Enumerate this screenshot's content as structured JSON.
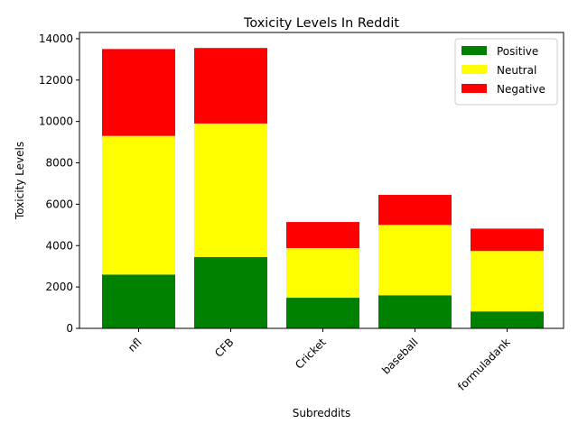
{
  "chart_data": {
    "type": "bar",
    "stacked": true,
    "title": "Toxicity Levels In Reddit",
    "xlabel": "Subreddits",
    "ylabel": "Toxicity Levels",
    "categories": [
      "nfl",
      "CFB",
      "Cricket",
      "baseball",
      "formuladank"
    ],
    "series": [
      {
        "name": "Positive",
        "color": "#008000",
        "values": [
          2600,
          3450,
          1480,
          1600,
          820
        ]
      },
      {
        "name": "Neutral",
        "color": "#ffff00",
        "values": [
          6700,
          6450,
          2400,
          3400,
          2920
        ]
      },
      {
        "name": "Negative",
        "color": "#ff0000",
        "values": [
          4200,
          3650,
          1260,
          1450,
          1080
        ]
      }
    ],
    "ylim": [
      0,
      14300
    ],
    "yticks": [
      0,
      2000,
      4000,
      6000,
      8000,
      10000,
      12000,
      14000
    ],
    "xtick_rotation": 45,
    "grid": false,
    "legend_position": "top-right"
  }
}
